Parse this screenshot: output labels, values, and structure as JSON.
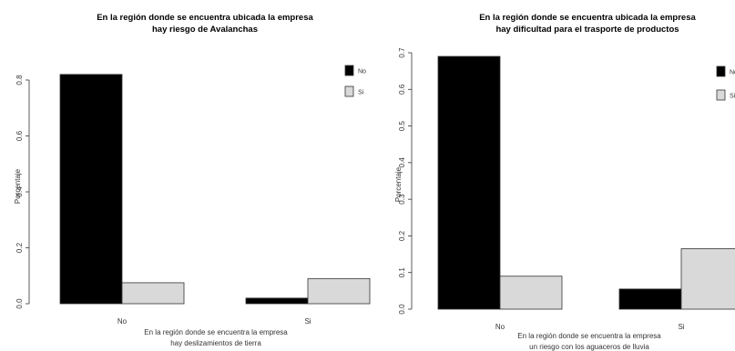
{
  "chart_data": [
    {
      "type": "bar",
      "title": "En la región donde se encuentra ubicada la empresa",
      "subtitle": "hay riesgo de Avalanchas",
      "ylabel": "Porcentaje",
      "xlabel": "En la región donde se encuentra la empresa",
      "xlabel2": "hay deslizamientos de tierra",
      "categories": [
        "No",
        "Si"
      ],
      "series": [
        {
          "name": "No",
          "color": "#000000",
          "values": [
            0.82,
            0.02
          ]
        },
        {
          "name": "Si",
          "color": "#d9d9d9",
          "values": [
            0.075,
            0.09
          ]
        }
      ],
      "ylim": [
        0,
        0.8
      ],
      "yticks": [
        "0.0",
        "0.2",
        "0.4",
        "0.6",
        "0.8"
      ],
      "legend": "top-right"
    },
    {
      "type": "bar",
      "title": "En la región donde se encuentra ubicada la empresa",
      "subtitle": "hay dificultad para el trasporte de productos",
      "ylabel": "Porcentaje",
      "xlabel": "En la región donde se encuentra la empresa",
      "xlabel2": "un riesgo con los aguaceros de lluvia",
      "categories": [
        "No",
        "Si"
      ],
      "series": [
        {
          "name": "No",
          "color": "#000000",
          "values": [
            0.69,
            0.055
          ]
        },
        {
          "name": "Si",
          "color": "#d9d9d9",
          "values": [
            0.09,
            0.165
          ]
        }
      ],
      "ylim": [
        0,
        0.7
      ],
      "yticks": [
        "0.0",
        "0.1",
        "0.2",
        "0.3",
        "0.4",
        "0.5",
        "0.6",
        "0.7"
      ],
      "legend": "top-right"
    }
  ]
}
